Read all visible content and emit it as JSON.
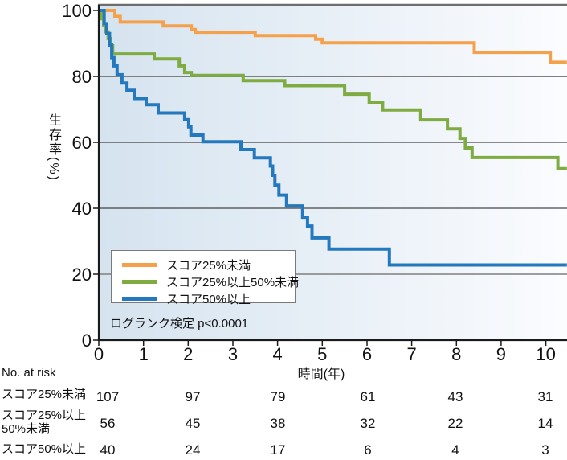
{
  "chart_data": {
    "type": "line",
    "subtype": "kaplan-meier-step-survival",
    "title": "",
    "xlabel": "時間(年)",
    "ylabel": "生存率(%)",
    "xlim": [
      0,
      10.47
    ],
    "ylim": [
      0,
      100
    ],
    "xticks": [
      0,
      1,
      2,
      3,
      4,
      5,
      6,
      7,
      8,
      9,
      10
    ],
    "yticks": [
      0,
      20,
      40,
      60,
      80,
      100
    ],
    "grid": "horizontal",
    "legend_position": "inside lower-left",
    "annotation": "ログランク検定 p<0.0001",
    "series": [
      {
        "id": "score-lt25",
        "name": "スコア25%未満",
        "color": "#F5A14B",
        "steps": [
          [
            0,
            100
          ],
          [
            0.36,
            98.2
          ],
          [
            0.48,
            96.5
          ],
          [
            1.44,
            95.3
          ],
          [
            2.07,
            94.2
          ],
          [
            2.16,
            93.4
          ],
          [
            3.5,
            92.4
          ],
          [
            4.85,
            91.3
          ],
          [
            5.0,
            90.2
          ],
          [
            8.4,
            87.3
          ],
          [
            10.1,
            84.3
          ],
          [
            10.47,
            84.3
          ]
        ]
      },
      {
        "id": "score-25to50",
        "name": "スコア25%以上50%未満",
        "color": "#7EAC41",
        "steps": [
          [
            0,
            100
          ],
          [
            0.06,
            97.5
          ],
          [
            0.11,
            95.5
          ],
          [
            0.16,
            93.5
          ],
          [
            0.21,
            91.5
          ],
          [
            0.26,
            89.3
          ],
          [
            0.31,
            86.8
          ],
          [
            1.24,
            85.3
          ],
          [
            1.8,
            83.2
          ],
          [
            1.92,
            81.2
          ],
          [
            2.07,
            80.3
          ],
          [
            3.23,
            78.7
          ],
          [
            4.16,
            77.2
          ],
          [
            5.5,
            74.6
          ],
          [
            6.05,
            72.2
          ],
          [
            6.35,
            69.8
          ],
          [
            7.2,
            66.8
          ],
          [
            7.8,
            64.1
          ],
          [
            8.08,
            61.2
          ],
          [
            8.2,
            58.3
          ],
          [
            8.35,
            55.4
          ],
          [
            10.27,
            52
          ],
          [
            10.47,
            52
          ]
        ]
      },
      {
        "id": "score-ge50",
        "name": "スコア50%以上",
        "color": "#2478BE",
        "steps": [
          [
            0,
            100
          ],
          [
            0.12,
            96
          ],
          [
            0.18,
            93
          ],
          [
            0.24,
            89.5
          ],
          [
            0.29,
            85.7
          ],
          [
            0.34,
            83.2
          ],
          [
            0.41,
            80.5
          ],
          [
            0.52,
            78
          ],
          [
            0.63,
            75.8
          ],
          [
            0.79,
            73.3
          ],
          [
            1.06,
            71.4
          ],
          [
            1.33,
            68.9
          ],
          [
            1.92,
            66.9
          ],
          [
            2.01,
            64.7
          ],
          [
            2.06,
            62.2
          ],
          [
            2.33,
            60.2
          ],
          [
            3.18,
            57.8
          ],
          [
            3.48,
            55.3
          ],
          [
            3.84,
            52.8
          ],
          [
            3.89,
            50
          ],
          [
            3.94,
            47
          ],
          [
            4.03,
            44
          ],
          [
            4.2,
            40.7
          ],
          [
            4.56,
            37.3
          ],
          [
            4.67,
            34.6
          ],
          [
            4.77,
            31
          ],
          [
            5.15,
            27.6
          ],
          [
            6.5,
            22.8
          ],
          [
            10.47,
            22.8
          ]
        ]
      }
    ],
    "at_risk": {
      "label": "No. at risk",
      "times": [
        0,
        2,
        4,
        6,
        8,
        10
      ],
      "rows": [
        {
          "name": "スコア25%未満",
          "name_lines": [
            "スコア25%未満"
          ],
          "values": [
            107,
            97,
            79,
            61,
            43,
            31
          ]
        },
        {
          "name": "スコア25%以上50%未満",
          "name_lines": [
            "スコア25%以上",
            "50%未満"
          ],
          "values": [
            56,
            45,
            38,
            32,
            22,
            14
          ]
        },
        {
          "name": "スコア50%以上",
          "name_lines": [
            "スコア50%以上"
          ],
          "values": [
            40,
            24,
            17,
            6,
            4,
            3
          ]
        }
      ]
    },
    "colors": {
      "plot_bg_left": "#D5E3EF",
      "plot_bg_right": "#FBFCFE",
      "grid_gray": "#7F7F7F",
      "axis": "#1A1A1A",
      "frame_top": "#6E6E6E"
    }
  }
}
